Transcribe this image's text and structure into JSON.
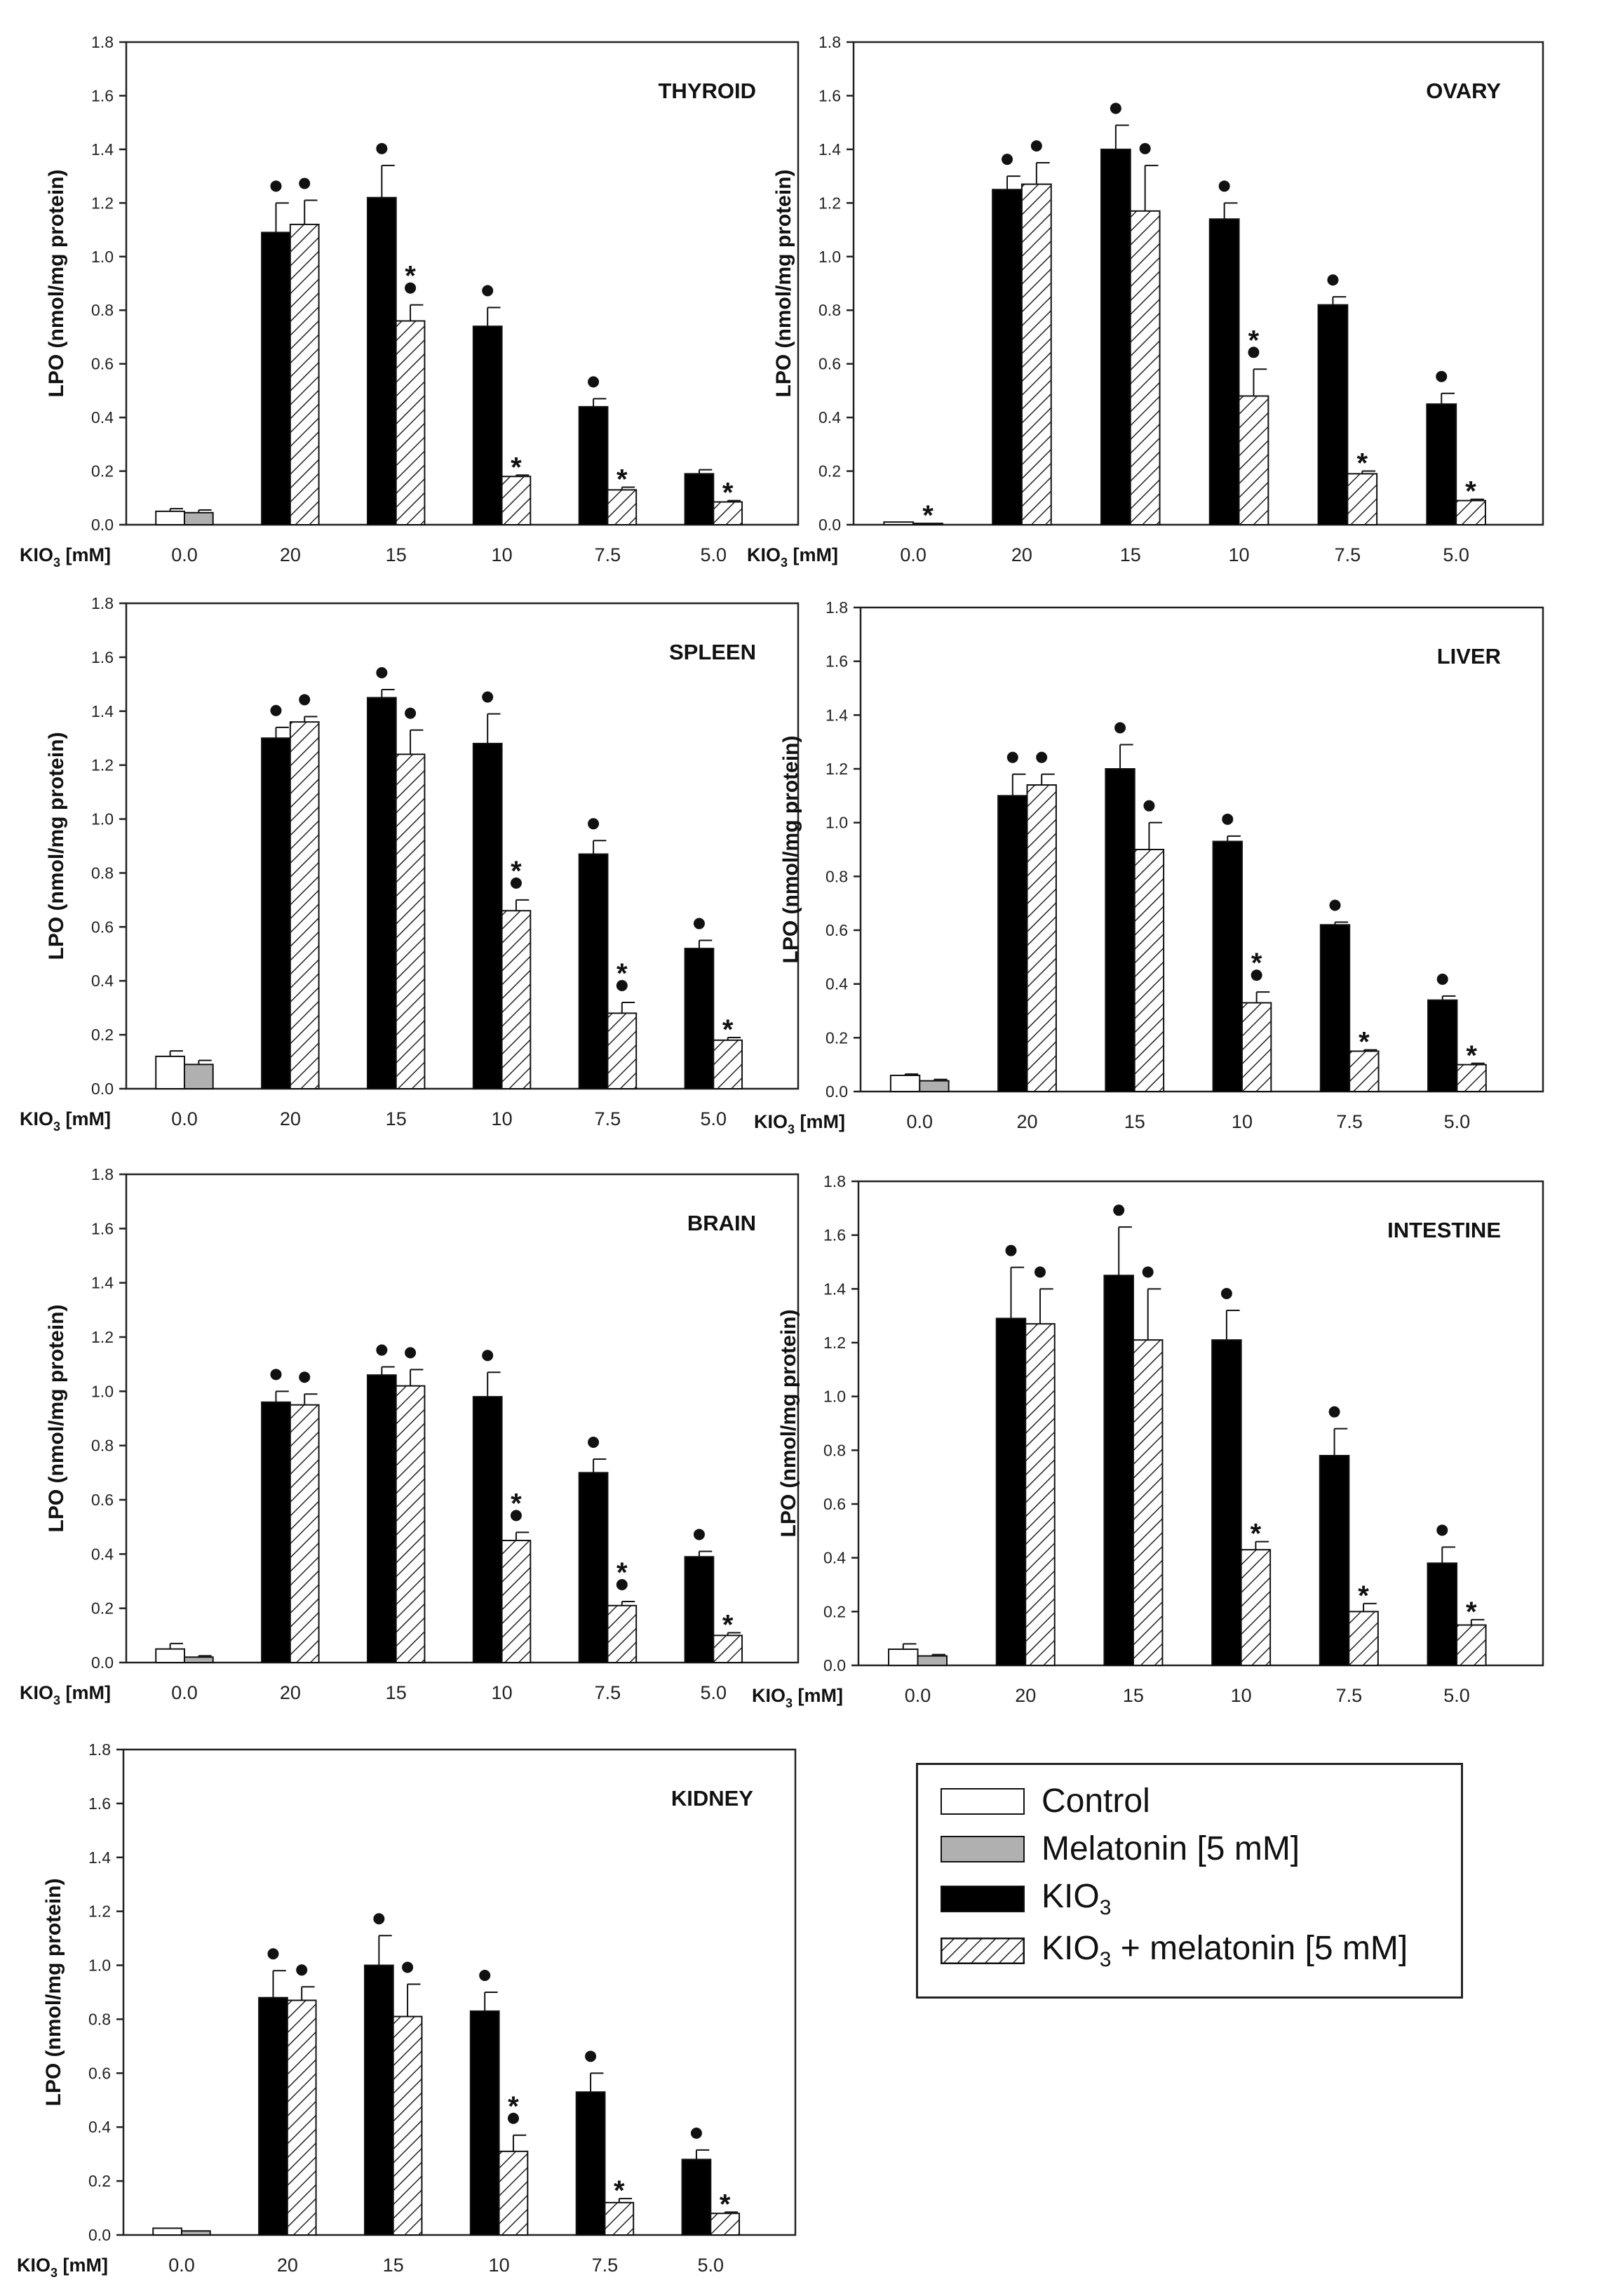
{
  "figure": {
    "y_axis_label": "LPO (nmol/mg protein)",
    "x_axis_label": "KIO3 [mM]",
    "ylim": [
      0,
      1.8
    ],
    "y_ticks": [
      "0.0",
      "0.2",
      "0.4",
      "0.6",
      "0.8",
      "1.0",
      "1.2",
      "1.4",
      "1.6",
      "1.8"
    ]
  },
  "legend": {
    "items": [
      {
        "id": "control",
        "label": "Control"
      },
      {
        "id": "melatonin",
        "label": "Melatonin [5 mM]"
      },
      {
        "id": "kio3",
        "label": "KIO",
        "sub": "3"
      },
      {
        "id": "kio3_mel",
        "label": "KIO",
        "sub": "3",
        "suffix": " + melatonin [5 mM]"
      }
    ]
  },
  "colors": {
    "control": "#ffffff",
    "melatonin": "#b0b0b0",
    "kio3": "#000000",
    "hatch": "#222222",
    "axis": "#222222"
  },
  "chart_data": [
    {
      "type": "bar",
      "title": "THYROID",
      "categories": [
        "0.0",
        "20",
        "15",
        "10",
        "7.5",
        "5.0"
      ],
      "xlabel": "KIO3 [mM]",
      "ylabel": "LPO (nmol/mg protein)",
      "ylim": [
        0,
        1.8
      ],
      "series": [
        {
          "name": "Control",
          "values": [
            0.05,
            null,
            null,
            null,
            null,
            null
          ],
          "errors": [
            0.01,
            null,
            null,
            null,
            null,
            null
          ],
          "marks": [
            "",
            "",
            "",
            "",
            "",
            ""
          ]
        },
        {
          "name": "Melatonin [5 mM]",
          "values": [
            0.045,
            null,
            null,
            null,
            null,
            null
          ],
          "errors": [
            0.01,
            null,
            null,
            null,
            null,
            null
          ],
          "marks": [
            "",
            "",
            "",
            "",
            "",
            ""
          ]
        },
        {
          "name": "KIO3",
          "values": [
            null,
            1.09,
            1.22,
            0.74,
            0.44,
            0.19
          ],
          "errors": [
            null,
            0.11,
            0.12,
            0.07,
            0.03,
            0.015
          ],
          "marks": [
            "",
            "•",
            "•",
            "•",
            "•",
            ""
          ]
        },
        {
          "name": "KIO3 + melatonin [5 mM]",
          "values": [
            null,
            1.12,
            0.76,
            0.18,
            0.13,
            0.085
          ],
          "errors": [
            null,
            0.09,
            0.06,
            0.005,
            0.01,
            0.005
          ],
          "marks": [
            "",
            "•",
            "*•",
            "*",
            "*",
            "*"
          ]
        }
      ]
    },
    {
      "type": "bar",
      "title": "OVARY",
      "categories": [
        "0.0",
        "20",
        "15",
        "10",
        "7.5",
        "5.0"
      ],
      "xlabel": "KIO3 [mM]",
      "ylabel": "LPO (nmol/mg protein)",
      "ylim": [
        0,
        1.8
      ],
      "series": [
        {
          "name": "Control",
          "values": [
            0.01,
            null,
            null,
            null,
            null,
            null
          ],
          "errors": [
            0.0,
            null,
            null,
            null,
            null,
            null
          ],
          "marks": [
            "",
            "",
            "",
            "",
            "",
            ""
          ]
        },
        {
          "name": "Melatonin [5 mM]",
          "values": [
            0.005,
            null,
            null,
            null,
            null,
            null
          ],
          "errors": [
            0.0,
            null,
            null,
            null,
            null,
            null
          ],
          "marks": [
            "*",
            "",
            "",
            "",
            "",
            ""
          ]
        },
        {
          "name": "KIO3",
          "values": [
            null,
            1.25,
            1.4,
            1.14,
            0.82,
            0.45
          ],
          "errors": [
            null,
            0.05,
            0.09,
            0.06,
            0.03,
            0.04
          ],
          "marks": [
            "",
            "•",
            "•",
            "•",
            "•",
            "•"
          ]
        },
        {
          "name": "KIO3 + melatonin [5 mM]",
          "values": [
            null,
            1.27,
            1.17,
            0.48,
            0.19,
            0.09
          ],
          "errors": [
            null,
            0.08,
            0.17,
            0.1,
            0.01,
            0.005
          ],
          "marks": [
            "",
            "•",
            "•",
            "*•",
            "*",
            "*"
          ]
        }
      ]
    },
    {
      "type": "bar",
      "title": "SPLEEN",
      "categories": [
        "0.0",
        "20",
        "15",
        "10",
        "7.5",
        "5.0"
      ],
      "xlabel": "KIO3 [mM]",
      "ylabel": "LPO (nmol/mg protein)",
      "ylim": [
        0,
        1.8
      ],
      "series": [
        {
          "name": "Control",
          "values": [
            0.12,
            null,
            null,
            null,
            null,
            null
          ],
          "errors": [
            0.02,
            null,
            null,
            null,
            null,
            null
          ],
          "marks": [
            "",
            "",
            "",
            "",
            "",
            ""
          ]
        },
        {
          "name": "Melatonin [5 mM]",
          "values": [
            0.09,
            null,
            null,
            null,
            null,
            null
          ],
          "errors": [
            0.015,
            null,
            null,
            null,
            null,
            null
          ],
          "marks": [
            "",
            "",
            "",
            "",
            "",
            ""
          ]
        },
        {
          "name": "KIO3",
          "values": [
            null,
            1.3,
            1.45,
            1.28,
            0.87,
            0.52
          ],
          "errors": [
            null,
            0.04,
            0.03,
            0.11,
            0.05,
            0.03
          ],
          "marks": [
            "",
            "•",
            "•",
            "•",
            "•",
            "•"
          ]
        },
        {
          "name": "KIO3 + melatonin [5 mM]",
          "values": [
            null,
            1.36,
            1.24,
            0.66,
            0.28,
            0.18
          ],
          "errors": [
            null,
            0.02,
            0.09,
            0.04,
            0.04,
            0.01
          ],
          "marks": [
            "",
            "•",
            "•",
            "*•",
            "*•",
            "*"
          ]
        }
      ]
    },
    {
      "type": "bar",
      "title": "LIVER",
      "categories": [
        "0.0",
        "20",
        "15",
        "10",
        "7.5",
        "5.0"
      ],
      "xlabel": "KIO3 [mM]",
      "ylabel": "LPO (nmol/mg protein)",
      "ylim": [
        0,
        1.8
      ],
      "series": [
        {
          "name": "Control",
          "values": [
            0.06,
            null,
            null,
            null,
            null,
            null
          ],
          "errors": [
            0.005,
            null,
            null,
            null,
            null,
            null
          ],
          "marks": [
            "",
            "",
            "",
            "",
            "",
            ""
          ]
        },
        {
          "name": "Melatonin [5 mM]",
          "values": [
            0.04,
            null,
            null,
            null,
            null,
            null
          ],
          "errors": [
            0.005,
            null,
            null,
            null,
            null,
            null
          ],
          "marks": [
            "",
            "",
            "",
            "",
            "",
            ""
          ]
        },
        {
          "name": "KIO3",
          "values": [
            null,
            1.1,
            1.2,
            0.93,
            0.62,
            0.34
          ],
          "errors": [
            null,
            0.08,
            0.09,
            0.02,
            0.01,
            0.015
          ],
          "marks": [
            "",
            "•",
            "•",
            "•",
            "•",
            "•"
          ]
        },
        {
          "name": "KIO3 + melatonin [5 mM]",
          "values": [
            null,
            1.14,
            0.9,
            0.33,
            0.15,
            0.1
          ],
          "errors": [
            null,
            0.04,
            0.1,
            0.04,
            0.005,
            0.005
          ],
          "marks": [
            "",
            "•",
            "•",
            "*•",
            "*",
            "*"
          ]
        }
      ]
    },
    {
      "type": "bar",
      "title": "BRAIN",
      "categories": [
        "0.0",
        "20",
        "15",
        "10",
        "7.5",
        "5.0"
      ],
      "xlabel": "KIO3 [mM]",
      "ylabel": "LPO (nmol/mg protein)",
      "ylim": [
        0,
        1.8
      ],
      "series": [
        {
          "name": "Control",
          "values": [
            0.05,
            null,
            null,
            null,
            null,
            null
          ],
          "errors": [
            0.02,
            null,
            null,
            null,
            null,
            null
          ],
          "marks": [
            "",
            "",
            "",
            "",
            "",
            ""
          ]
        },
        {
          "name": "Melatonin [5 mM]",
          "values": [
            0.02,
            null,
            null,
            null,
            null,
            null
          ],
          "errors": [
            0.005,
            null,
            null,
            null,
            null,
            null
          ],
          "marks": [
            "",
            "",
            "",
            "",
            "",
            ""
          ]
        },
        {
          "name": "KIO3",
          "values": [
            null,
            0.96,
            1.06,
            0.98,
            0.7,
            0.39
          ],
          "errors": [
            null,
            0.04,
            0.03,
            0.09,
            0.05,
            0.02
          ],
          "marks": [
            "",
            "•",
            "•",
            "•",
            "•",
            "•"
          ]
        },
        {
          "name": "KIO3 + melatonin [5 mM]",
          "values": [
            null,
            0.95,
            1.02,
            0.45,
            0.21,
            0.1
          ],
          "errors": [
            null,
            0.04,
            0.06,
            0.03,
            0.015,
            0.01
          ],
          "marks": [
            "",
            "•",
            "•",
            "*•",
            "*•",
            "*"
          ]
        }
      ]
    },
    {
      "type": "bar",
      "title": "INTESTINE",
      "categories": [
        "0.0",
        "20",
        "15",
        "10",
        "7.5",
        "5.0"
      ],
      "xlabel": "KIO3 [mM]",
      "ylabel": "LPO (nmol/mg protein)",
      "ylim": [
        0,
        1.8
      ],
      "series": [
        {
          "name": "Control",
          "values": [
            0.06,
            null,
            null,
            null,
            null,
            null
          ],
          "errors": [
            0.02,
            null,
            null,
            null,
            null,
            null
          ],
          "marks": [
            "",
            "",
            "",
            "",
            "",
            ""
          ]
        },
        {
          "name": "Melatonin [5 mM]",
          "values": [
            0.035,
            null,
            null,
            null,
            null,
            null
          ],
          "errors": [
            0.005,
            null,
            null,
            null,
            null,
            null
          ],
          "marks": [
            "",
            "",
            "",
            "",
            "",
            ""
          ]
        },
        {
          "name": "KIO3",
          "values": [
            null,
            1.29,
            1.45,
            1.21,
            0.78,
            0.38
          ],
          "errors": [
            null,
            0.19,
            0.18,
            0.11,
            0.1,
            0.06
          ],
          "marks": [
            "",
            "•",
            "•",
            "•",
            "•",
            "•"
          ]
        },
        {
          "name": "KIO3 + melatonin [5 mM]",
          "values": [
            null,
            1.27,
            1.21,
            0.43,
            0.2,
            0.15
          ],
          "errors": [
            null,
            0.13,
            0.19,
            0.03,
            0.03,
            0.02
          ],
          "marks": [
            "",
            "•",
            "•",
            "*",
            "*",
            "*"
          ]
        }
      ]
    },
    {
      "type": "bar",
      "title": "KIDNEY",
      "categories": [
        "0.0",
        "20",
        "15",
        "10",
        "7.5",
        "5.0"
      ],
      "xlabel": "KIO3 [mM]",
      "ylabel": "LPO (nmol/mg protein)",
      "ylim": [
        0,
        1.8
      ],
      "series": [
        {
          "name": "Control",
          "values": [
            0.025,
            null,
            null,
            null,
            null,
            null
          ],
          "errors": [
            0.0,
            null,
            null,
            null,
            null,
            null
          ],
          "marks": [
            "",
            "",
            "",
            "",
            "",
            ""
          ]
        },
        {
          "name": "Melatonin [5 mM]",
          "values": [
            0.015,
            null,
            null,
            null,
            null,
            null
          ],
          "errors": [
            0.0,
            null,
            null,
            null,
            null,
            null
          ],
          "marks": [
            "",
            "",
            "",
            "",
            "",
            ""
          ]
        },
        {
          "name": "KIO3",
          "values": [
            null,
            0.88,
            1.0,
            0.83,
            0.53,
            0.28
          ],
          "errors": [
            null,
            0.1,
            0.11,
            0.07,
            0.07,
            0.035
          ],
          "marks": [
            "",
            "•",
            "•",
            "•",
            "•",
            "•"
          ]
        },
        {
          "name": "KIO3 + melatonin [5 mM]",
          "values": [
            null,
            0.87,
            0.81,
            0.31,
            0.12,
            0.08
          ],
          "errors": [
            null,
            0.05,
            0.12,
            0.06,
            0.015,
            0.005
          ],
          "marks": [
            "",
            "•",
            "•",
            "*•",
            "*",
            "*"
          ]
        }
      ]
    }
  ]
}
